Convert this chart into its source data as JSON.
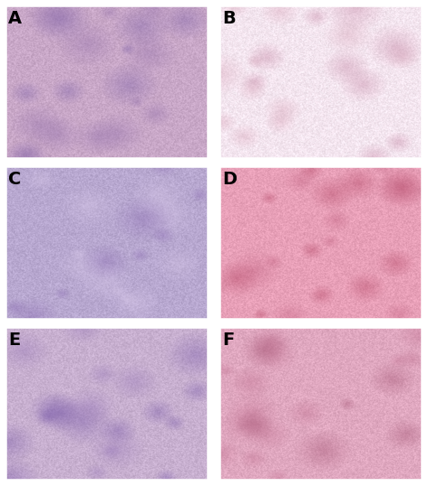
{
  "panels": [
    "A",
    "B",
    "C",
    "D",
    "E",
    "F"
  ],
  "grid_rows": 3,
  "grid_cols": 2,
  "label_color": "#000000",
  "label_fontsize": 14,
  "label_fontweight": "bold",
  "background_color": "#ffffff",
  "border_color": "#ffffff",
  "border_width": 4,
  "panel_colors": {
    "A": {
      "base": "#c9a8c8",
      "accent": "#9370ab",
      "secondary": "#e8d5e8",
      "tertiary": "#7b5ea7"
    },
    "B": {
      "base": "#f5e6f0",
      "accent": "#d4a0b5",
      "secondary": "#ffffff",
      "tertiary": "#c080a0"
    },
    "C": {
      "base": "#b8a8d0",
      "accent": "#8868b0",
      "secondary": "#4488cc",
      "tertiary": "#d8c8e8"
    },
    "D": {
      "base": "#e8a0b8",
      "accent": "#c06080",
      "secondary": "#d4d0e8",
      "tertiary": "#b04060"
    },
    "E": {
      "base": "#c8b0d0",
      "accent": "#9878b8",
      "secondary": "#ffffff",
      "tertiary": "#7858a8"
    },
    "F": {
      "base": "#e0a8c0",
      "accent": "#c07090",
      "secondary": "#d8d0e8",
      "tertiary": "#a05070"
    }
  },
  "figsize": [
    4.74,
    5.38
  ],
  "dpi": 100
}
